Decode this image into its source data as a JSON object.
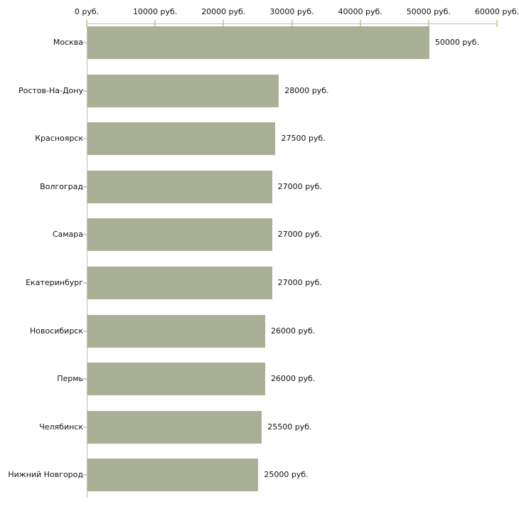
{
  "chart_data": {
    "type": "bar",
    "orientation": "horizontal",
    "title": "",
    "xlabel": "",
    "ylabel": "",
    "unit": "руб.",
    "categories": [
      "Москва",
      "Ростов-На-Дону",
      "Красноярск",
      "Волгоград",
      "Самара",
      "Екатеринбург",
      "Новосибирск",
      "Пермь",
      "Челябинск",
      "Нижний Новгород"
    ],
    "values": [
      50000,
      28000,
      27500,
      27000,
      27000,
      27000,
      26000,
      26000,
      25500,
      25000
    ],
    "value_labels": [
      "50000 руб.",
      "28000 руб.",
      "27500 руб.",
      "27000 руб.",
      "27000 руб.",
      "27000 руб.",
      "26000 руб.",
      "26000 руб.",
      "25500 руб.",
      "25000 руб."
    ],
    "x_ticks": [
      0,
      10000,
      20000,
      30000,
      40000,
      50000,
      60000
    ],
    "x_tick_labels": [
      "0 руб.",
      "10000 руб.",
      "20000 руб.",
      "30000 руб.",
      "40000 руб.",
      "50000 руб.",
      "60000 руб."
    ],
    "xlim": [
      0,
      60000
    ],
    "grid": false,
    "legend": false,
    "axis_position": "top-left",
    "colors": {
      "bar_fill": "#aab096",
      "axis_line": "#c0c0c0",
      "tick_mark": "#d2cfa8",
      "text": "#111111",
      "background": "#ffffff"
    }
  }
}
